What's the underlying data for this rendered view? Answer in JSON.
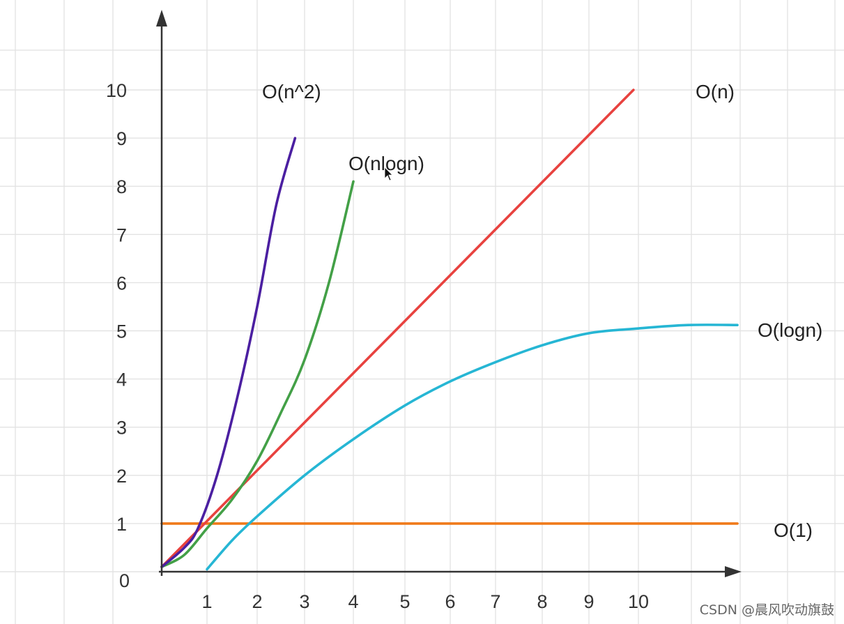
{
  "chart_data": {
    "type": "line",
    "x_ticks": [
      "1",
      "2",
      "3",
      "4",
      "5",
      "6",
      "7",
      "8",
      "9",
      "10"
    ],
    "y_ticks": [
      "0",
      "1",
      "2",
      "3",
      "4",
      "5",
      "6",
      "7",
      "8",
      "9",
      "10"
    ],
    "xlim": [
      0,
      12
    ],
    "ylim": [
      0,
      10
    ],
    "grid": true,
    "series": [
      {
        "name": "O(n^2)",
        "color": "#4b1fa1",
        "points": [
          [
            0,
            0.1
          ],
          [
            0.5,
            0.5
          ],
          [
            0.8,
            0.9
          ],
          [
            1.2,
            2.0
          ],
          [
            1.6,
            3.6
          ],
          [
            2.0,
            5.5
          ],
          [
            2.4,
            7.6
          ],
          [
            2.8,
            9.0
          ]
        ]
      },
      {
        "name": "O(nlogn)",
        "color": "#43a047",
        "points": [
          [
            0,
            0.1
          ],
          [
            0.5,
            0.35
          ],
          [
            1.0,
            0.9
          ],
          [
            1.5,
            1.5
          ],
          [
            2.0,
            2.3
          ],
          [
            2.5,
            3.3
          ],
          [
            3.0,
            4.4
          ],
          [
            3.5,
            6.0
          ],
          [
            4.0,
            8.1
          ]
        ]
      },
      {
        "name": "O(n)",
        "color": "#e8423f",
        "points": [
          [
            0,
            0.1
          ],
          [
            9.9,
            10.0
          ]
        ]
      },
      {
        "name": "O(logn)",
        "color": "#26b6d4",
        "points": [
          [
            1.0,
            0.05
          ],
          [
            1.5,
            0.65
          ],
          [
            2.0,
            1.15
          ],
          [
            3.0,
            2.0
          ],
          [
            4.0,
            2.75
          ],
          [
            5.0,
            3.45
          ],
          [
            6.0,
            3.95
          ],
          [
            7.0,
            4.35
          ],
          [
            8.0,
            4.7
          ],
          [
            9.0,
            4.95
          ],
          [
            10.0,
            5.05
          ],
          [
            11.0,
            5.12
          ],
          [
            12.0,
            5.12
          ]
        ]
      },
      {
        "name": "O(1)",
        "color": "#f07a1a",
        "points": [
          [
            0,
            1.0
          ],
          [
            12.0,
            1.0
          ]
        ]
      }
    ]
  },
  "watermark": "CSDN @晨风吹动旗鼓"
}
